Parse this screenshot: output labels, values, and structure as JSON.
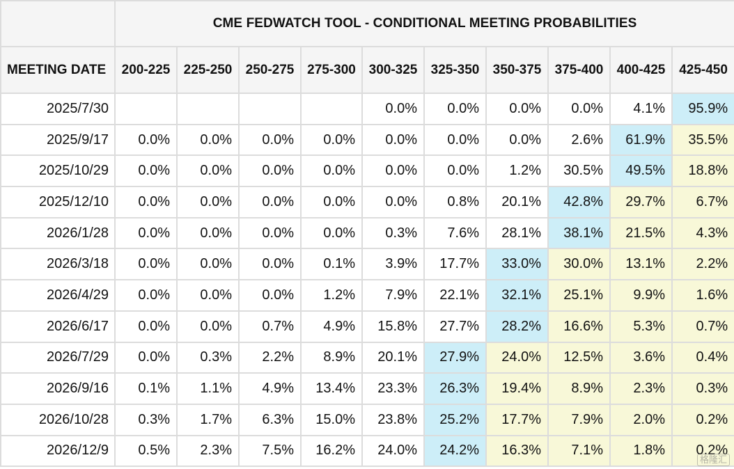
{
  "table": {
    "title": "CME FEDWATCH TOOL - CONDITIONAL MEETING PROBABILITIES",
    "date_header": "MEETING DATE",
    "columns": [
      "200-225",
      "225-250",
      "250-275",
      "275-300",
      "300-325",
      "325-350",
      "350-375",
      "375-400",
      "400-425",
      "425-450"
    ],
    "rows": [
      {
        "date": "2025/7/30",
        "values": [
          "",
          "",
          "",
          "",
          "0.0%",
          "0.0%",
          "0.0%",
          "0.0%",
          "4.1%",
          "95.9%"
        ],
        "max_index": 9
      },
      {
        "date": "2025/9/17",
        "values": [
          "0.0%",
          "0.0%",
          "0.0%",
          "0.0%",
          "0.0%",
          "0.0%",
          "0.0%",
          "2.6%",
          "61.9%",
          "35.5%"
        ],
        "max_index": 8
      },
      {
        "date": "2025/10/29",
        "values": [
          "0.0%",
          "0.0%",
          "0.0%",
          "0.0%",
          "0.0%",
          "0.0%",
          "1.2%",
          "30.5%",
          "49.5%",
          "18.8%"
        ],
        "max_index": 8
      },
      {
        "date": "2025/12/10",
        "values": [
          "0.0%",
          "0.0%",
          "0.0%",
          "0.0%",
          "0.0%",
          "0.8%",
          "20.1%",
          "42.8%",
          "29.7%",
          "6.7%"
        ],
        "max_index": 7
      },
      {
        "date": "2026/1/28",
        "values": [
          "0.0%",
          "0.0%",
          "0.0%",
          "0.0%",
          "0.3%",
          "7.6%",
          "28.1%",
          "38.1%",
          "21.5%",
          "4.3%"
        ],
        "max_index": 7
      },
      {
        "date": "2026/3/18",
        "values": [
          "0.0%",
          "0.0%",
          "0.0%",
          "0.1%",
          "3.9%",
          "17.7%",
          "33.0%",
          "30.0%",
          "13.1%",
          "2.2%"
        ],
        "max_index": 6
      },
      {
        "date": "2026/4/29",
        "values": [
          "0.0%",
          "0.0%",
          "0.0%",
          "1.2%",
          "7.9%",
          "22.1%",
          "32.1%",
          "25.1%",
          "9.9%",
          "1.6%"
        ],
        "max_index": 6
      },
      {
        "date": "2026/6/17",
        "values": [
          "0.0%",
          "0.0%",
          "0.7%",
          "4.9%",
          "15.8%",
          "27.7%",
          "28.2%",
          "16.6%",
          "5.3%",
          "0.7%"
        ],
        "max_index": 6
      },
      {
        "date": "2026/7/29",
        "values": [
          "0.0%",
          "0.3%",
          "2.2%",
          "8.9%",
          "20.1%",
          "27.9%",
          "24.0%",
          "12.5%",
          "3.6%",
          "0.4%"
        ],
        "max_index": 5
      },
      {
        "date": "2026/9/16",
        "values": [
          "0.1%",
          "1.1%",
          "4.9%",
          "13.4%",
          "23.3%",
          "26.3%",
          "19.4%",
          "8.9%",
          "2.3%",
          "0.3%"
        ],
        "max_index": 5
      },
      {
        "date": "2026/10/28",
        "values": [
          "0.3%",
          "1.7%",
          "6.3%",
          "15.0%",
          "23.8%",
          "25.2%",
          "17.7%",
          "7.9%",
          "2.0%",
          "0.2%"
        ],
        "max_index": 5
      },
      {
        "date": "2026/12/9",
        "values": [
          "0.5%",
          "2.3%",
          "7.5%",
          "16.2%",
          "24.0%",
          "24.2%",
          "16.3%",
          "7.1%",
          "1.8%",
          "0.2%"
        ],
        "max_index": 5
      }
    ]
  },
  "colors": {
    "highest_probability": "#cdeef8",
    "above_highest": "#f8f8d8",
    "header_bg": "#f5f5f5",
    "grid": "#dcdcdc"
  },
  "watermark": {
    "text": "格隆汇"
  },
  "chart_data": {
    "type": "table",
    "title": "CME FEDWATCH TOOL - CONDITIONAL MEETING PROBABILITIES",
    "row_header": "MEETING DATE",
    "columns": [
      "200-225",
      "225-250",
      "250-275",
      "275-300",
      "300-325",
      "325-350",
      "350-375",
      "375-400",
      "400-425",
      "425-450"
    ],
    "rows": [
      "2025/7/30",
      "2025/9/17",
      "2025/10/29",
      "2025/12/10",
      "2026/1/28",
      "2026/3/18",
      "2026/4/29",
      "2026/6/17",
      "2026/7/29",
      "2026/9/16",
      "2026/10/28",
      "2026/12/9"
    ],
    "values": [
      [
        null,
        null,
        null,
        null,
        0.0,
        0.0,
        0.0,
        0.0,
        4.1,
        95.9
      ],
      [
        0.0,
        0.0,
        0.0,
        0.0,
        0.0,
        0.0,
        0.0,
        2.6,
        61.9,
        35.5
      ],
      [
        0.0,
        0.0,
        0.0,
        0.0,
        0.0,
        0.0,
        1.2,
        30.5,
        49.5,
        18.8
      ],
      [
        0.0,
        0.0,
        0.0,
        0.0,
        0.0,
        0.8,
        20.1,
        42.8,
        29.7,
        6.7
      ],
      [
        0.0,
        0.0,
        0.0,
        0.0,
        0.3,
        7.6,
        28.1,
        38.1,
        21.5,
        4.3
      ],
      [
        0.0,
        0.0,
        0.0,
        0.1,
        3.9,
        17.7,
        33.0,
        30.0,
        13.1,
        2.2
      ],
      [
        0.0,
        0.0,
        0.0,
        1.2,
        7.9,
        22.1,
        32.1,
        25.1,
        9.9,
        1.6
      ],
      [
        0.0,
        0.0,
        0.7,
        4.9,
        15.8,
        27.7,
        28.2,
        16.6,
        5.3,
        0.7
      ],
      [
        0.0,
        0.3,
        2.2,
        8.9,
        20.1,
        27.9,
        24.0,
        12.5,
        3.6,
        0.4
      ],
      [
        0.1,
        1.1,
        4.9,
        13.4,
        23.3,
        26.3,
        19.4,
        8.9,
        2.3,
        0.3
      ],
      [
        0.3,
        1.7,
        6.3,
        15.0,
        23.8,
        25.2,
        17.7,
        7.9,
        2.0,
        0.2
      ],
      [
        0.5,
        2.3,
        7.5,
        16.2,
        24.0,
        24.2,
        16.3,
        7.1,
        1.8,
        0.2
      ]
    ]
  }
}
